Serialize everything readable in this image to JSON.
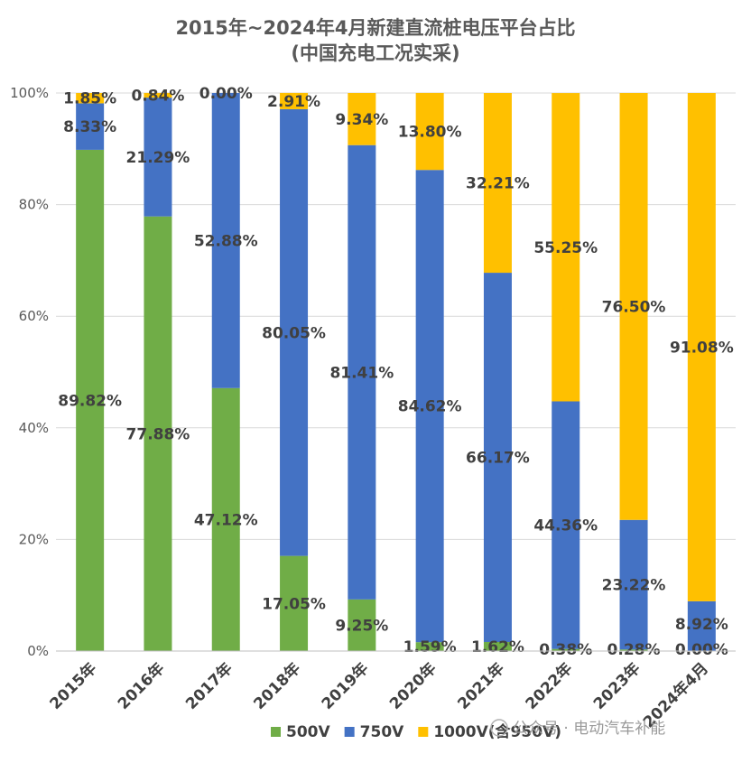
{
  "chart_data": {
    "type": "bar",
    "stacked": true,
    "title": "2015年~2024年4月新建直流桩电压平台占比",
    "subtitle": "(中国充电工况实采)",
    "categories": [
      "2015年",
      "2016年",
      "2017年",
      "2018年",
      "2019年",
      "2020年",
      "2021年",
      "2022年",
      "2023年",
      "2024年4月"
    ],
    "series": [
      {
        "name": "500V",
        "color": "#70ad47",
        "values": [
          89.82,
          77.88,
          47.12,
          17.05,
          9.25,
          1.59,
          1.62,
          0.38,
          0.28,
          0.0
        ],
        "labels": [
          "89.82%",
          "77.88%",
          "47.12%",
          "17.05%",
          "9.25%",
          "1.59%",
          "1.62%",
          "0.38%",
          "0.28%",
          "0.00%"
        ]
      },
      {
        "name": "750V",
        "color": "#4472c4",
        "values": [
          8.33,
          21.29,
          52.88,
          80.05,
          81.41,
          84.62,
          66.17,
          44.36,
          23.22,
          8.92
        ],
        "labels": [
          "8.33%",
          "21.29%",
          "52.88%",
          "80.05%",
          "81.41%",
          "84.62%",
          "66.17%",
          "44.36%",
          "23.22%",
          "8.92%"
        ]
      },
      {
        "name": "1000V(含950V)",
        "color": "#ffc000",
        "values": [
          1.85,
          0.84,
          0.0,
          2.91,
          9.34,
          13.8,
          32.21,
          55.25,
          76.5,
          91.08
        ],
        "labels": [
          "1.85%",
          "0.84%",
          "0.00%",
          "2.91%",
          "9.34%",
          "13.80%",
          "32.21%",
          "55.25%",
          "76.50%",
          "91.08%"
        ]
      }
    ],
    "yticks": [
      "0%",
      "20%",
      "40%",
      "60%",
      "80%",
      "100%"
    ],
    "ylim": [
      0,
      100
    ],
    "grid": true,
    "legend": "bottom"
  },
  "watermark": "公众号 · 电动汽车补能"
}
